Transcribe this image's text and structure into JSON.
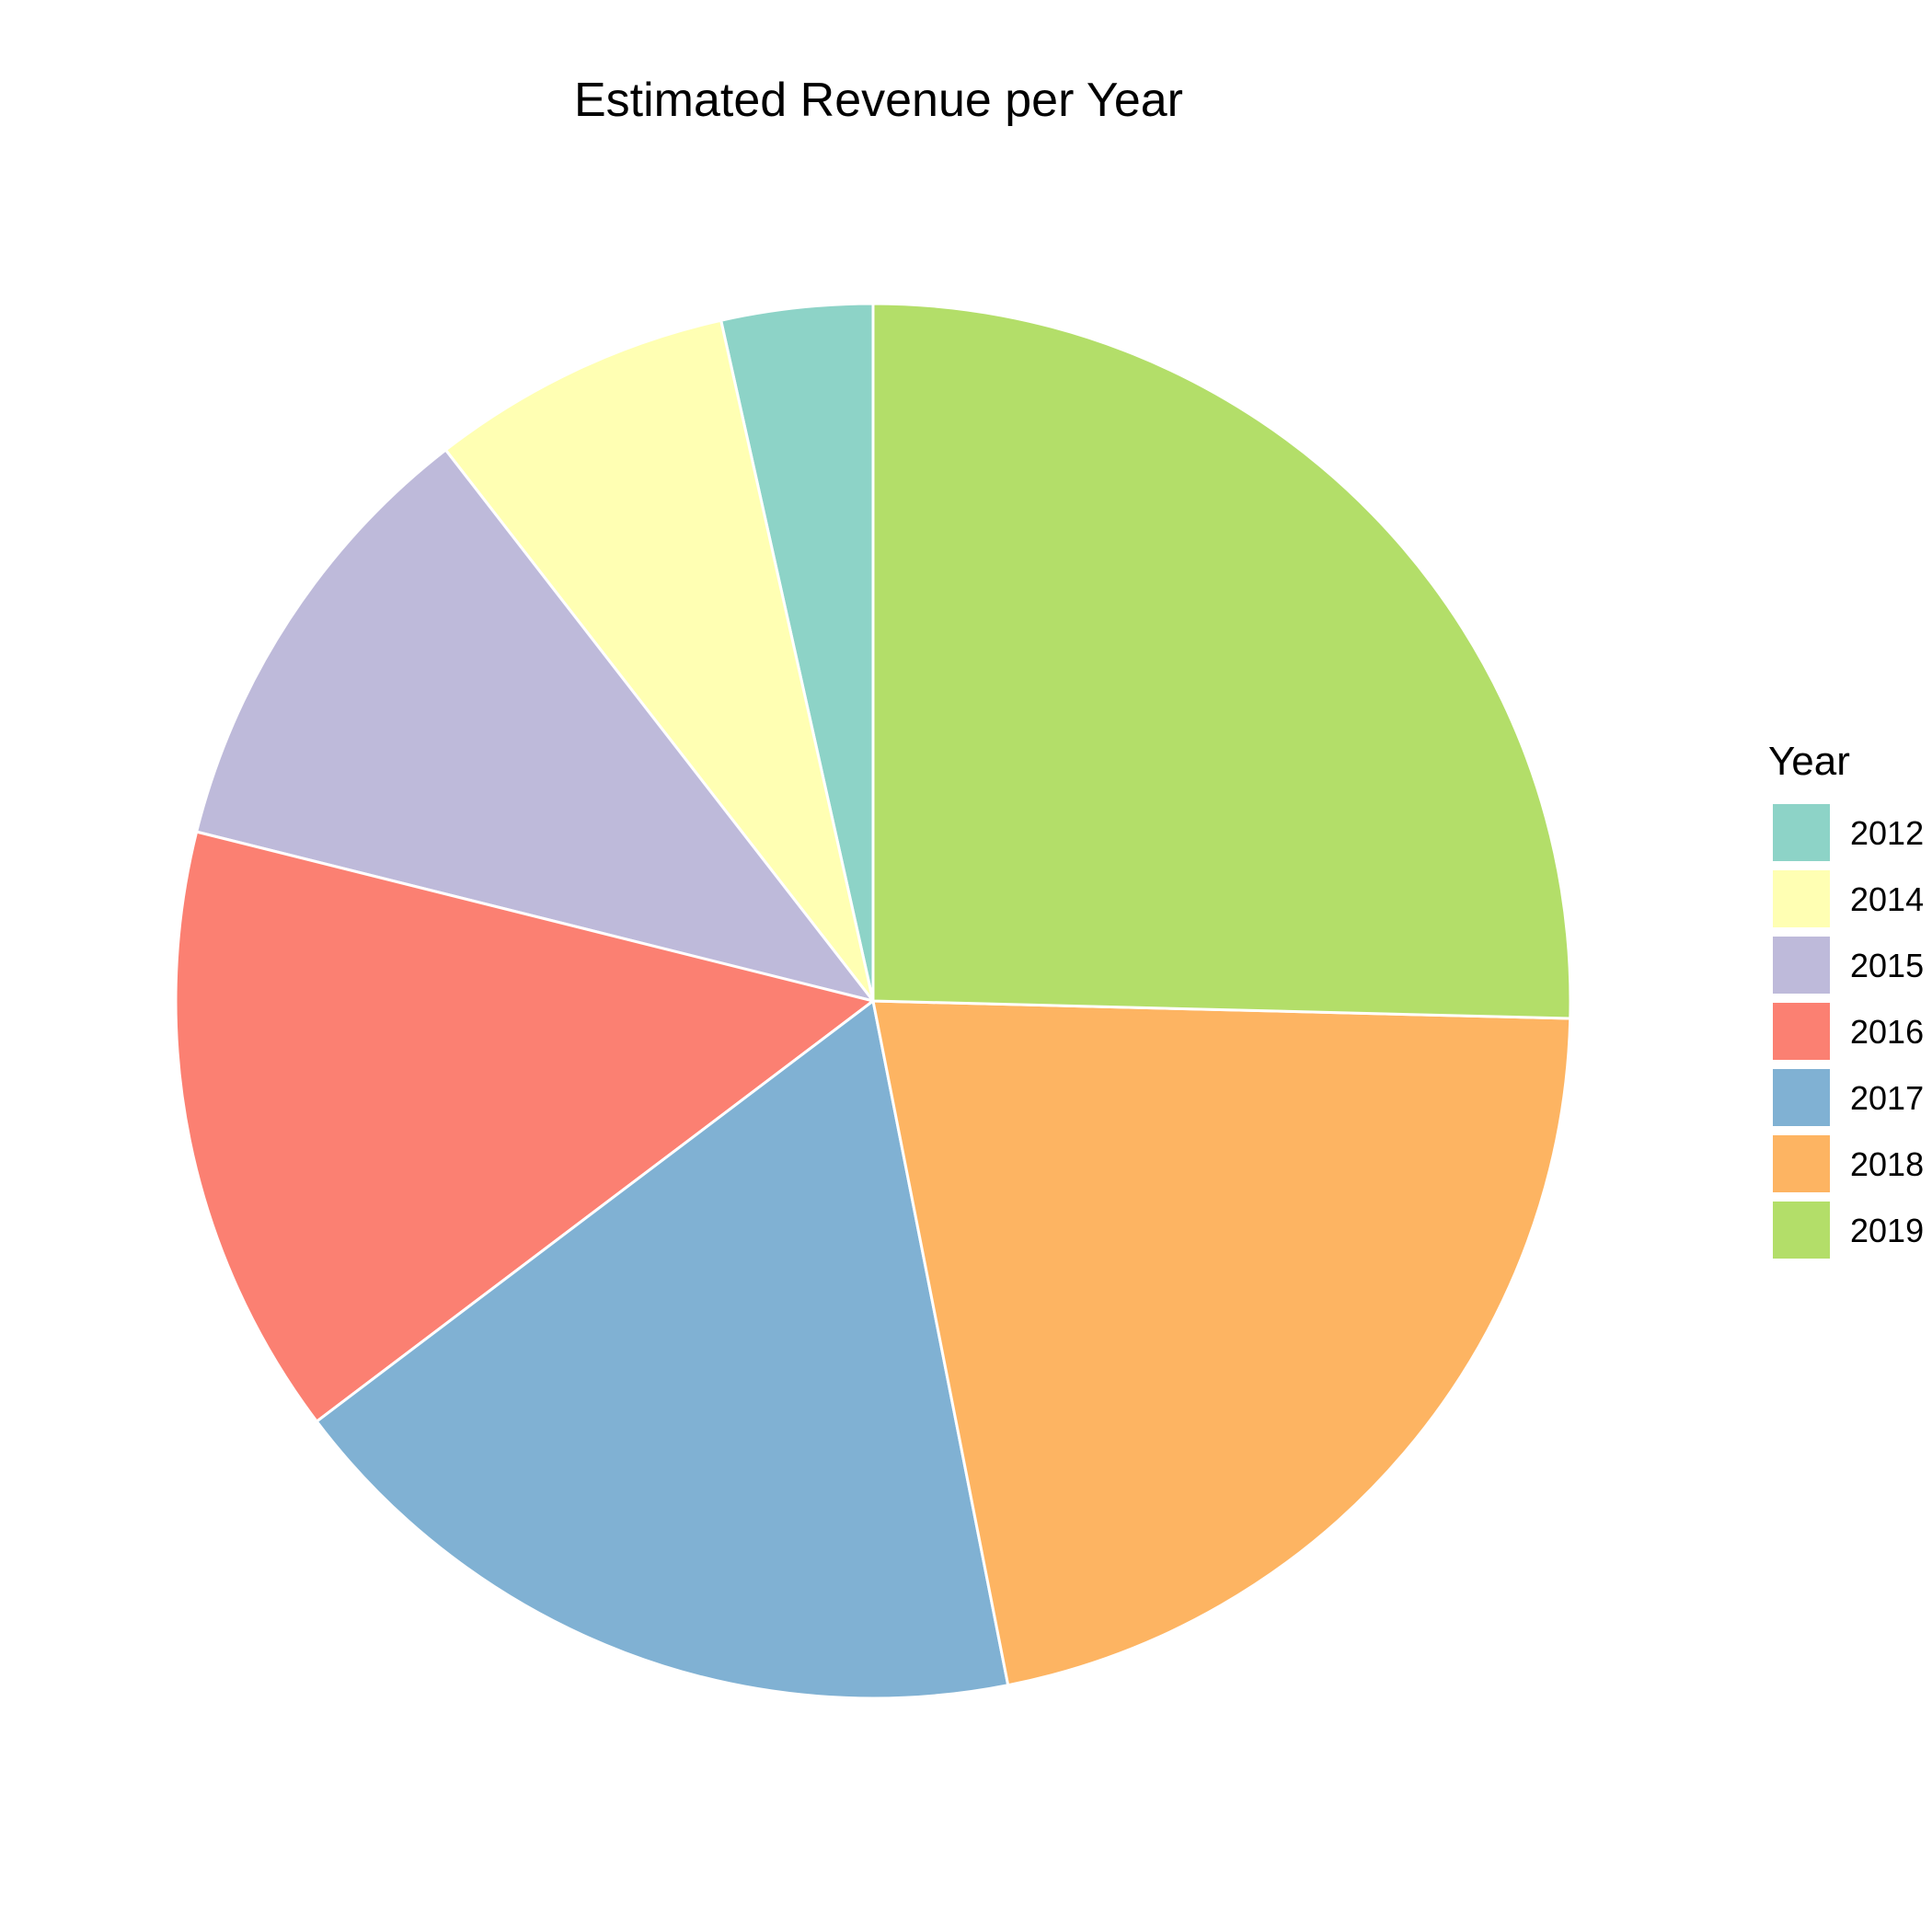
{
  "chart_data": {
    "type": "pie",
    "title": "Estimated Revenue per Year",
    "legend_title": "Year",
    "legend_position": "right",
    "start_angle": "12 o'clock",
    "direction": "counter-clockwise",
    "categories": [
      "2012",
      "2014",
      "2015",
      "2016",
      "2017",
      "2018",
      "2019"
    ],
    "values": [
      3.5,
      7.0,
      10.6,
      14.2,
      17.8,
      21.5,
      25.4
    ],
    "colors": [
      "#8DD3C7",
      "#FFFFB3",
      "#BEBADA",
      "#FB8072",
      "#80B1D3",
      "#FDB462",
      "#B3DE69"
    ],
    "slice_border_color": "#FFFFFF"
  }
}
